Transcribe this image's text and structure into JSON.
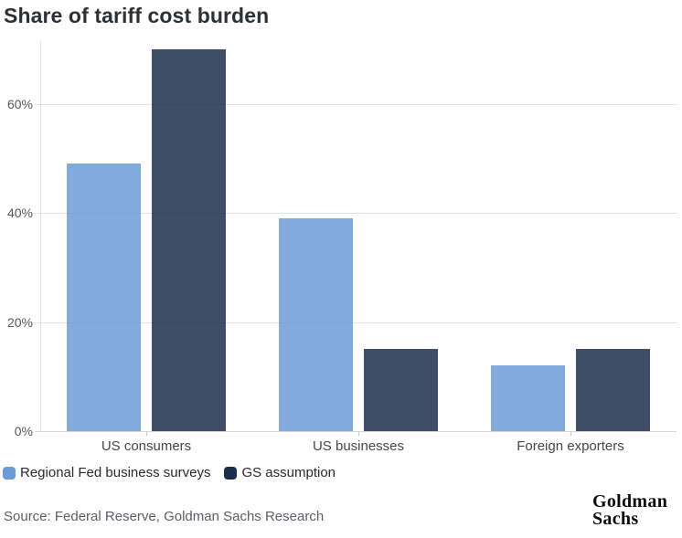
{
  "title": "Share of tariff cost burden",
  "source": "Source: Federal Reserve, Goldman Sachs Research",
  "logo": {
    "line1": "Goldman",
    "line2": "Sachs"
  },
  "colors": {
    "series_blue": "#6b9bd9",
    "series_navy": "#1d2e4a",
    "gridline": "#e2e2e2",
    "title_text": "#2d3034",
    "axis_label_text": "#55585e"
  },
  "chart_data": {
    "type": "bar",
    "title": "Share of tariff cost burden",
    "categories": [
      "US consumers",
      "US businesses",
      "Foreign exporters"
    ],
    "series": [
      {
        "name": "Regional Fed business surveys",
        "color": "#6b9bd9",
        "values": [
          49,
          39,
          12
        ]
      },
      {
        "name": "GS assumption",
        "color": "#1d2e4a",
        "values": [
          70,
          15,
          15
        ]
      }
    ],
    "xlabel": "",
    "ylabel": "",
    "ylim": [
      0,
      71.5
    ],
    "yticks": [
      0,
      20,
      40,
      60
    ],
    "ytick_labels": [
      "0%",
      "20%",
      "40%",
      "60%"
    ],
    "grid": true,
    "legend_position": "bottom-left"
  }
}
